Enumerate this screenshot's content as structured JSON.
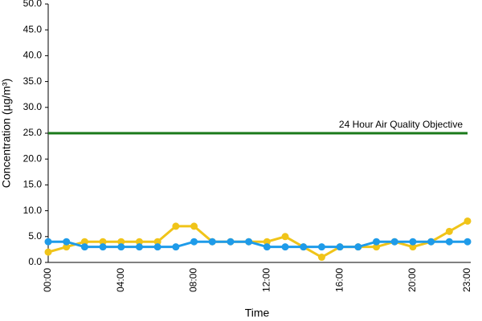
{
  "chart_data": {
    "type": "line",
    "x_label": "Time",
    "y_label": "Concentration (µg/m³)",
    "categories": [
      "00:00",
      null,
      null,
      null,
      "04:00",
      null,
      null,
      null,
      "08:00",
      null,
      null,
      null,
      "12:00",
      null,
      null,
      null,
      "16:00",
      null,
      null,
      null,
      "20:00",
      null,
      null,
      "23:00"
    ],
    "series": [
      {
        "color": "#f0c419",
        "values": [
          2,
          3,
          4,
          4,
          4,
          4,
          4,
          7,
          7,
          4,
          4,
          4,
          4,
          5,
          3,
          1,
          3,
          3,
          3,
          4,
          3,
          4,
          6,
          8
        ]
      },
      {
        "color": "#1e9be9",
        "values": [
          4,
          4,
          3,
          3,
          3,
          3,
          3,
          3,
          4,
          4,
          4,
          4,
          3,
          3,
          3,
          3,
          3,
          3,
          4,
          4,
          4,
          4,
          4,
          4
        ]
      }
    ],
    "objective": {
      "label": "24 Hour Air Quality Objective",
      "value": 25,
      "color": "#1a7a1a"
    },
    "ylim": [
      0,
      50
    ],
    "yticks": [
      {
        "value": 0,
        "label": "0.0"
      },
      {
        "value": 5,
        "label": "5.0"
      },
      {
        "value": 10,
        "label": "10.0"
      },
      {
        "value": 15,
        "label": "15.0"
      },
      {
        "value": 20,
        "label": "20.0"
      },
      {
        "value": 25,
        "label": "25.0"
      },
      {
        "value": 30,
        "label": "30.0"
      },
      {
        "value": 35,
        "label": "35.0"
      },
      {
        "value": 40,
        "label": "40.0"
      },
      {
        "value": 45,
        "label": "45.0"
      },
      {
        "value": 50,
        "label": "50.0"
      }
    ],
    "grid": false
  }
}
